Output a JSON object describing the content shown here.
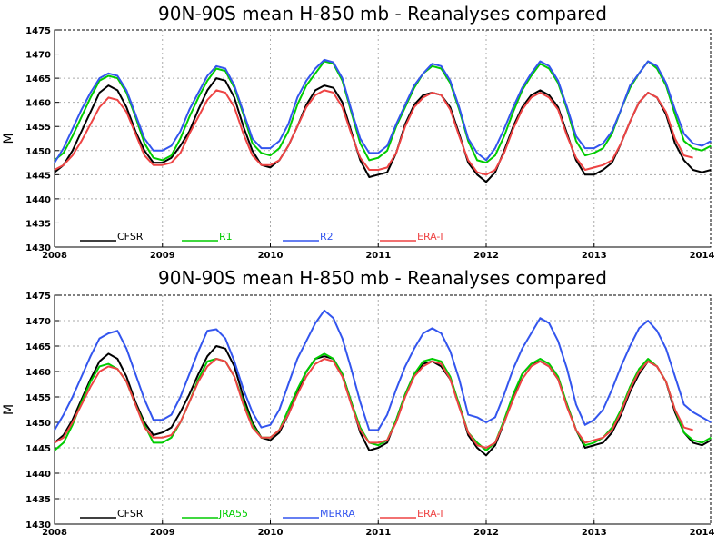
{
  "chart_data": [
    {
      "type": "line",
      "title": "90N-90S mean H-850 mb - Reanalyses compared",
      "ylabel": "M",
      "xlabel": "",
      "xlim": [
        2008,
        2014.08
      ],
      "ylim": [
        1430,
        1475
      ],
      "x_ticks": [
        "2008",
        "2009",
        "2010",
        "2011",
        "2012",
        "2013",
        "2014"
      ],
      "y_ticks": [
        "1430",
        "1435",
        "1440",
        "1445",
        "1450",
        "1455",
        "1460",
        "1465",
        "1470",
        "1475"
      ],
      "grid": true,
      "legend_position": "bottom-left",
      "series": [
        {
          "name": "CFSR",
          "color": "#000000",
          "start": 2008.0,
          "step": 0.08333,
          "values": [
            1445.5,
            1447.0,
            1450.0,
            1454.0,
            1458.0,
            1462.0,
            1463.5,
            1462.5,
            1459.0,
            1454.0,
            1450.0,
            1447.5,
            1447.5,
            1448.5,
            1451.0,
            1454.0,
            1458.5,
            1462.5,
            1465.0,
            1464.5,
            1461.0,
            1455.0,
            1450.0,
            1447.0,
            1446.5,
            1448.0,
            1451.0,
            1455.0,
            1459.5,
            1462.5,
            1463.5,
            1463.0,
            1460.0,
            1454.0,
            1448.0,
            1444.5,
            1445.0,
            1445.5,
            1449.5,
            1455.5,
            1459.5,
            1461.5,
            1462.0,
            1461.5,
            1459.0,
            1453.5,
            1447.5,
            1445.0,
            1443.5,
            1445.5,
            1450.0,
            1455.0,
            1459.0,
            1461.5,
            1462.5,
            1461.5,
            1459.0,
            1453.5,
            1448.0,
            1445.0,
            1445.0,
            1446.0,
            1447.5,
            1451.5,
            1456.0,
            1460.0,
            1462.0,
            1461.0,
            1457.5,
            1451.5,
            1448.0,
            1446.0,
            1445.5,
            1446.0
          ]
        },
        {
          "name": "R1",
          "color": "#00cc00",
          "start": 2008.0,
          "step": 0.08333,
          "values": [
            1448.0,
            1449.5,
            1453.0,
            1457.0,
            1461.0,
            1464.5,
            1465.5,
            1465.0,
            1462.0,
            1457.0,
            1451.5,
            1448.5,
            1448.0,
            1449.0,
            1452.5,
            1457.0,
            1461.0,
            1464.5,
            1467.0,
            1466.5,
            1463.0,
            1457.5,
            1451.5,
            1449.5,
            1449.0,
            1450.5,
            1454.0,
            1459.5,
            1463.5,
            1466.0,
            1468.5,
            1468.0,
            1464.5,
            1458.0,
            1451.5,
            1448.0,
            1448.5,
            1450.0,
            1455.0,
            1459.0,
            1463.0,
            1466.0,
            1467.5,
            1467.0,
            1464.0,
            1458.5,
            1452.0,
            1448.0,
            1447.5,
            1449.0,
            1453.0,
            1458.0,
            1462.5,
            1465.5,
            1468.0,
            1467.0,
            1464.0,
            1458.5,
            1452.0,
            1449.0,
            1449.5,
            1450.5,
            1453.5,
            1458.5,
            1463.0,
            1466.0,
            1468.5,
            1467.0,
            1463.5,
            1457.5,
            1452.0,
            1450.5,
            1450.0,
            1451.0
          ]
        },
        {
          "name": "R2",
          "color": "#3355ee",
          "start": 2008.0,
          "step": 0.08333,
          "values": [
            1447.5,
            1450.5,
            1454.5,
            1458.5,
            1462.0,
            1465.0,
            1466.0,
            1465.5,
            1462.5,
            1457.5,
            1452.5,
            1450.0,
            1450.0,
            1451.0,
            1454.0,
            1458.5,
            1462.0,
            1465.5,
            1467.5,
            1467.0,
            1463.5,
            1458.0,
            1452.5,
            1450.5,
            1450.5,
            1452.0,
            1455.5,
            1461.0,
            1464.5,
            1467.0,
            1468.8,
            1468.3,
            1465.0,
            1458.5,
            1452.5,
            1449.5,
            1449.5,
            1451.0,
            1455.5,
            1459.5,
            1463.5,
            1466.0,
            1468.0,
            1467.5,
            1464.5,
            1459.0,
            1452.5,
            1449.5,
            1448.0,
            1450.5,
            1454.5,
            1459.0,
            1463.0,
            1466.0,
            1468.5,
            1467.5,
            1464.5,
            1459.0,
            1453.0,
            1450.5,
            1450.5,
            1451.5,
            1454.0,
            1458.5,
            1463.5,
            1466.0,
            1468.5,
            1467.5,
            1464.0,
            1458.5,
            1453.5,
            1451.5,
            1451.0,
            1452.0
          ]
        },
        {
          "name": "ERA-I",
          "color": "#ee4444",
          "start": 2008.0,
          "step": 0.08333,
          "values": [
            1446.0,
            1447.0,
            1449.0,
            1452.0,
            1455.5,
            1459.0,
            1461.0,
            1460.5,
            1458.0,
            1453.5,
            1449.0,
            1447.0,
            1447.0,
            1447.5,
            1449.5,
            1453.5,
            1457.0,
            1460.5,
            1462.5,
            1462.0,
            1459.0,
            1453.5,
            1449.0,
            1447.0,
            1447.0,
            1448.0,
            1451.0,
            1455.0,
            1459.0,
            1461.5,
            1462.5,
            1462.0,
            1459.0,
            1453.5,
            1448.5,
            1446.0,
            1446.0,
            1446.5,
            1449.5,
            1455.0,
            1459.0,
            1461.0,
            1462.0,
            1461.5,
            1458.5,
            1453.0,
            1448.0,
            1445.5,
            1445.0,
            1446.0,
            1449.5,
            1454.5,
            1458.5,
            1461.0,
            1462.0,
            1461.0,
            1458.5,
            1453.0,
            1448.5,
            1446.0,
            1446.5,
            1447.0,
            1448.0,
            1451.5,
            1456.0,
            1460.0,
            1462.0,
            1461.0,
            1458.0,
            1452.5,
            1449.0,
            1448.5
          ]
        }
      ]
    },
    {
      "type": "line",
      "title": "90N-90S mean H-850 mb - Reanalyses compared",
      "ylabel": "M",
      "xlabel": "",
      "xlim": [
        2008,
        2014.08
      ],
      "ylim": [
        1430,
        1475
      ],
      "x_ticks": [
        "2008",
        "2009",
        "2010",
        "2011",
        "2012",
        "2013",
        "2014"
      ],
      "y_ticks": [
        "1430",
        "1435",
        "1440",
        "1445",
        "1450",
        "1455",
        "1460",
        "1465",
        "1470",
        "1475"
      ],
      "grid": true,
      "legend_position": "bottom-left",
      "series": [
        {
          "name": "CFSR",
          "color": "#000000",
          "start": 2008.0,
          "step": 0.08333,
          "values": [
            1446.0,
            1447.5,
            1450.5,
            1454.5,
            1458.5,
            1462.0,
            1463.5,
            1462.5,
            1459.0,
            1454.0,
            1450.0,
            1447.5,
            1448.0,
            1449.0,
            1452.0,
            1455.5,
            1459.5,
            1463.0,
            1465.0,
            1464.5,
            1461.0,
            1455.0,
            1450.0,
            1447.0,
            1446.5,
            1448.0,
            1451.5,
            1456.0,
            1460.0,
            1462.5,
            1463.0,
            1462.5,
            1459.5,
            1454.0,
            1448.0,
            1444.5,
            1445.0,
            1446.0,
            1450.5,
            1455.5,
            1459.5,
            1461.5,
            1462.0,
            1461.0,
            1458.5,
            1453.5,
            1447.5,
            1445.0,
            1443.5,
            1445.5,
            1450.0,
            1455.0,
            1459.5,
            1461.5,
            1462.0,
            1461.0,
            1458.5,
            1453.5,
            1448.5,
            1445.0,
            1445.5,
            1446.0,
            1448.0,
            1451.5,
            1456.0,
            1459.5,
            1462.0,
            1461.0,
            1458.0,
            1452.0,
            1448.0,
            1446.0,
            1445.5,
            1446.5
          ]
        },
        {
          "name": "JRA55",
          "color": "#00cc00",
          "start": 2008.0,
          "step": 0.08333,
          "values": [
            1444.5,
            1446.0,
            1449.5,
            1454.0,
            1458.0,
            1461.0,
            1461.5,
            1460.5,
            1458.0,
            1453.5,
            1449.5,
            1446.0,
            1446.0,
            1447.0,
            1450.0,
            1454.0,
            1458.5,
            1462.0,
            1462.5,
            1462.0,
            1459.0,
            1454.0,
            1449.5,
            1447.0,
            1447.0,
            1448.5,
            1452.5,
            1456.5,
            1460.0,
            1462.5,
            1463.5,
            1462.5,
            1459.5,
            1454.0,
            1449.0,
            1446.0,
            1445.5,
            1446.5,
            1450.5,
            1455.5,
            1459.5,
            1462.0,
            1462.5,
            1462.0,
            1459.0,
            1453.5,
            1448.0,
            1446.0,
            1444.5,
            1446.0,
            1450.5,
            1455.5,
            1459.5,
            1461.5,
            1462.5,
            1461.5,
            1459.0,
            1453.5,
            1448.5,
            1445.5,
            1446.0,
            1447.0,
            1449.0,
            1452.5,
            1457.0,
            1460.5,
            1462.5,
            1461.0,
            1458.0,
            1452.5,
            1448.0,
            1446.5,
            1446.0,
            1447.0
          ]
        },
        {
          "name": "MERRA",
          "color": "#3355ee",
          "start": 2008.0,
          "step": 0.08333,
          "values": [
            1448.5,
            1451.5,
            1455.0,
            1459.0,
            1463.0,
            1466.5,
            1467.5,
            1468.0,
            1464.5,
            1459.5,
            1454.5,
            1450.5,
            1450.5,
            1451.5,
            1455.0,
            1459.5,
            1464.0,
            1468.0,
            1468.3,
            1466.5,
            1462.0,
            1456.5,
            1452.0,
            1449.0,
            1449.5,
            1452.5,
            1457.5,
            1462.5,
            1466.0,
            1469.5,
            1472.0,
            1470.5,
            1466.5,
            1460.5,
            1454.0,
            1448.5,
            1448.5,
            1451.5,
            1456.5,
            1461.0,
            1464.5,
            1467.5,
            1468.5,
            1467.5,
            1464.0,
            1458.5,
            1451.5,
            1451.0,
            1450.0,
            1451.0,
            1455.5,
            1460.5,
            1464.5,
            1467.5,
            1470.5,
            1469.5,
            1466.0,
            1460.5,
            1453.5,
            1449.5,
            1450.5,
            1452.5,
            1456.5,
            1461.0,
            1465.0,
            1468.5,
            1470.0,
            1468.0,
            1464.5,
            1459.0,
            1453.5,
            1452.0,
            1451.0,
            1450.0
          ]
        },
        {
          "name": "ERA-I",
          "color": "#ee4444",
          "start": 2008.0,
          "step": 0.08333,
          "values": [
            1446.0,
            1447.0,
            1450.0,
            1453.5,
            1457.0,
            1460.0,
            1461.0,
            1460.5,
            1458.0,
            1453.5,
            1449.0,
            1447.0,
            1447.0,
            1447.5,
            1450.0,
            1454.0,
            1458.0,
            1461.0,
            1462.5,
            1462.0,
            1459.0,
            1453.5,
            1449.0,
            1447.0,
            1447.0,
            1448.5,
            1451.5,
            1455.5,
            1459.0,
            1461.5,
            1462.5,
            1462.0,
            1459.0,
            1453.5,
            1448.5,
            1446.0,
            1446.0,
            1446.5,
            1450.0,
            1455.0,
            1459.0,
            1461.0,
            1462.0,
            1461.5,
            1458.5,
            1453.0,
            1448.0,
            1445.5,
            1445.0,
            1446.0,
            1450.0,
            1454.5,
            1458.5,
            1461.0,
            1462.0,
            1461.0,
            1458.5,
            1453.0,
            1448.5,
            1446.0,
            1446.5,
            1447.0,
            1448.5,
            1452.0,
            1456.5,
            1460.0,
            1462.0,
            1461.0,
            1458.0,
            1452.5,
            1449.0,
            1448.5
          ]
        }
      ]
    }
  ]
}
